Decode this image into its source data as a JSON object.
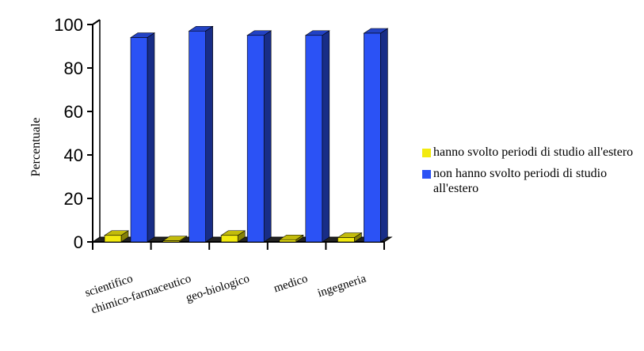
{
  "chart_data": {
    "type": "bar",
    "title": "",
    "xlabel": "",
    "ylabel": "Percentuale",
    "ylim": [
      0,
      100
    ],
    "yticks": [
      "0",
      "20",
      "40",
      "60",
      "80",
      "100"
    ],
    "categories": [
      "scientifico",
      "chimico-farmaceutico",
      "geo-biologico",
      "medico",
      "ingegneria"
    ],
    "series": [
      {
        "name": "hanno svolto periodi di studio all'estero",
        "color": "#f2ea0f",
        "values": [
          3,
          0.5,
          3,
          1,
          2
        ]
      },
      {
        "name": "non hanno svolto periodi di studio all'estero",
        "color": "#2b52f5",
        "values": [
          94,
          97,
          95,
          95,
          96
        ]
      }
    ],
    "grid": false,
    "legend_position": "right"
  }
}
